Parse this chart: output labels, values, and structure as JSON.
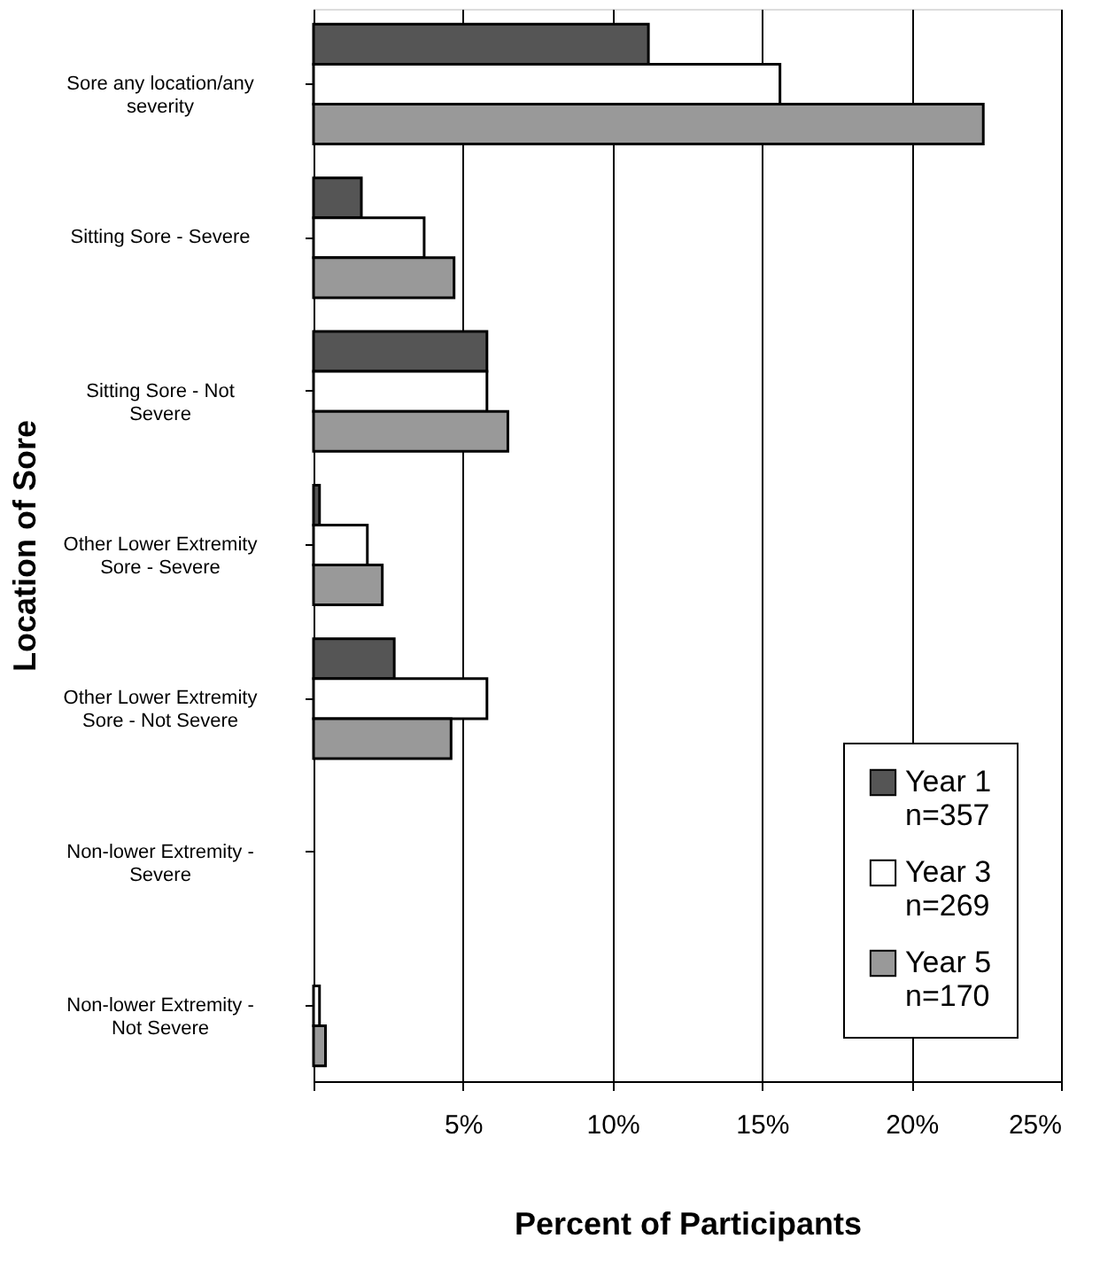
{
  "chart_data": {
    "type": "bar",
    "orientation": "horizontal",
    "xlabel": "Percent of Participants",
    "ylabel": "Location of Sore",
    "categories": [
      "Sore any location/any severity",
      "Sitting Sore - Severe",
      "Sitting Sore - Not Severe",
      "Other Lower Extremity Sore - Severe",
      "Other Lower Extremity Sore - Not Severe",
      "Non-lower Extremity - Severe",
      "Non-lower Extremity - Not Severe"
    ],
    "series": [
      {
        "name": "Year 1\nn=357",
        "color": "#555555",
        "values": [
          11.2,
          1.6,
          5.8,
          0.2,
          2.7,
          0,
          0
        ]
      },
      {
        "name": "Year 3\nn=269",
        "color": "#ffffff",
        "values": [
          15.6,
          3.7,
          5.8,
          1.8,
          5.8,
          0,
          0.2
        ]
      },
      {
        "name": "Year 5\nn=170",
        "color": "#999999",
        "values": [
          22.4,
          4.7,
          6.5,
          2.3,
          4.6,
          0,
          0.4
        ]
      }
    ],
    "xlim": [
      0,
      25
    ],
    "xticks": [
      {
        "value": 0,
        "label": null
      },
      {
        "value": 5,
        "label": "5%"
      },
      {
        "value": 10,
        "label": "10%"
      },
      {
        "value": 15,
        "label": "15%"
      },
      {
        "value": 20,
        "label": "20%"
      },
      {
        "value": 25,
        "label": "25%"
      }
    ],
    "grid": "x",
    "legend": "bottom right"
  }
}
